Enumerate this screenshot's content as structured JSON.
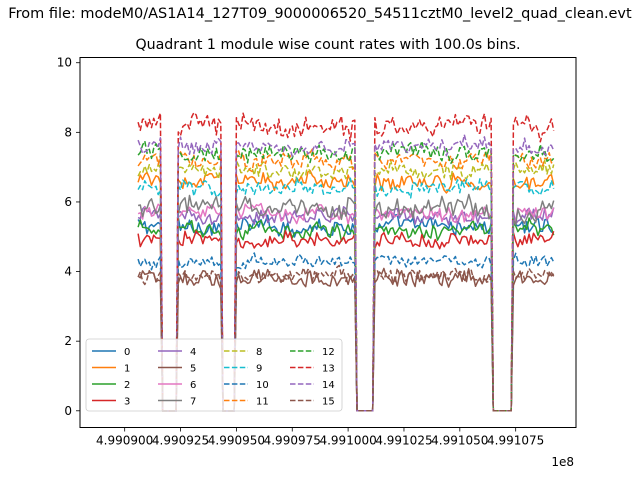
{
  "chart_data": {
    "type": "line",
    "suptitle": "From file: modeM0/AS1A14_127T09_9000006520_54511cztM0_level2_quad_clean.evt",
    "title": "Quadrant 1 module wise count rates with 100.0s bins.",
    "xlabel": "",
    "ylabel": "",
    "x_offset_label": "1e8",
    "xlim": [
      4.99088,
      4.991102
    ],
    "ylim": [
      -0.48,
      10.15
    ],
    "x_ticks": [
      4.9909,
      4.990925,
      4.99095,
      4.990975,
      4.991,
      4.991025,
      4.99105,
      4.991075
    ],
    "x_tick_labels": [
      "4.990900",
      "4.990925",
      "4.990950",
      "4.990975",
      "4.991000",
      "4.991025",
      "4.991050",
      "4.991075"
    ],
    "y_ticks": [
      0,
      2,
      4,
      6,
      8,
      10
    ],
    "y_tick_labels": [
      "0",
      "2",
      "4",
      "6",
      "8",
      "10"
    ],
    "grid": false,
    "legend_position": "lower-left",
    "legend_columns": 4,
    "time_range": [
      4.990906,
      4.991092
    ],
    "gaps": [
      {
        "start": 4.990916,
        "end": 4.990923
      },
      {
        "start": 4.990944,
        "end": 4.990949
      },
      {
        "start": 4.991004,
        "end": 4.991011
      },
      {
        "start": 4.991065,
        "end": 4.991073
      }
    ],
    "series": [
      {
        "name": "0",
        "color": "#1f77b4",
        "style": "solid",
        "level": 5.3,
        "noise": 0.22
      },
      {
        "name": "1",
        "color": "#ff7f0e",
        "style": "solid",
        "level": 6.6,
        "noise": 0.2
      },
      {
        "name": "2",
        "color": "#2ca02c",
        "style": "solid",
        "level": 5.2,
        "noise": 0.22
      },
      {
        "name": "3",
        "color": "#d62728",
        "style": "solid",
        "level": 4.9,
        "noise": 0.22
      },
      {
        "name": "4",
        "color": "#9467bd",
        "style": "solid",
        "level": 5.6,
        "noise": 0.22
      },
      {
        "name": "5",
        "color": "#8c564b",
        "style": "solid",
        "level": 3.8,
        "noise": 0.22
      },
      {
        "name": "6",
        "color": "#e377c2",
        "style": "solid",
        "level": 5.7,
        "noise": 0.22
      },
      {
        "name": "7",
        "color": "#7f7f7f",
        "style": "solid",
        "level": 5.8,
        "noise": 0.28
      },
      {
        "name": "8",
        "color": "#bcbd22",
        "style": "dashed",
        "level": 6.9,
        "noise": 0.22
      },
      {
        "name": "9",
        "color": "#17becf",
        "style": "dashed",
        "level": 6.4,
        "noise": 0.22
      },
      {
        "name": "10",
        "color": "#1f77b4",
        "style": "dashed",
        "level": 4.3,
        "noise": 0.18
      },
      {
        "name": "11",
        "color": "#ff7f0e",
        "style": "dashed",
        "level": 7.2,
        "noise": 0.22
      },
      {
        "name": "12",
        "color": "#2ca02c",
        "style": "dashed",
        "level": 7.4,
        "noise": 0.22
      },
      {
        "name": "13",
        "color": "#d62728",
        "style": "dashed",
        "level": 8.2,
        "noise": 0.32
      },
      {
        "name": "14",
        "color": "#9467bd",
        "style": "dashed",
        "level": 7.6,
        "noise": 0.22
      },
      {
        "name": "15",
        "color": "#8c564b",
        "style": "dashed",
        "level": 3.9,
        "noise": 0.2
      }
    ]
  }
}
